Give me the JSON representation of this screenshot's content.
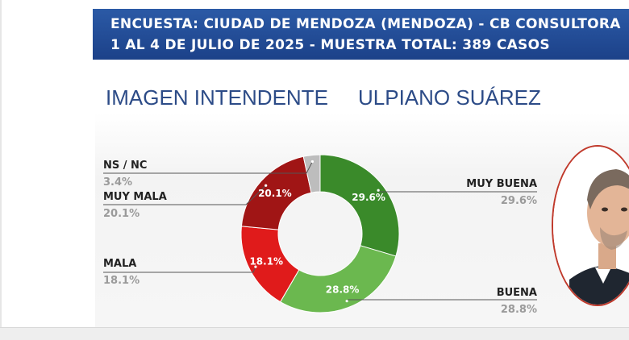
{
  "header": {
    "line1": "ENCUESTA: CIUDAD DE MENDOZA (MENDOZA) - CB CONSULTORA",
    "line2": "1 AL 4 DE JULIO DE 2025 - MUESTRA TOTAL: 389 CASOS"
  },
  "subtitle": {
    "left": "IMAGEN INTENDENTE",
    "right": "ULPIANO SUÁREZ"
  },
  "chart_data": {
    "type": "pie",
    "donut": true,
    "slices": [
      {
        "name": "MUY BUENA",
        "value": 29.6,
        "label": "29.6%",
        "color": "#3a8a2a"
      },
      {
        "name": "BUENA",
        "value": 28.8,
        "label": "28.8%",
        "color": "#6bb84f"
      },
      {
        "name": "MALA",
        "value": 18.1,
        "label": "18.1%",
        "color": "#e01b1b"
      },
      {
        "name": "MUY MALA",
        "value": 20.1,
        "label": "20.1%",
        "color": "#a01515"
      },
      {
        "name": "NS / NC",
        "value": 3.4,
        "label": "3.4%",
        "color": "#bdbdbd"
      }
    ]
  },
  "photo": {
    "icon": "person-portrait-icon",
    "border_color": "#c0392b"
  }
}
